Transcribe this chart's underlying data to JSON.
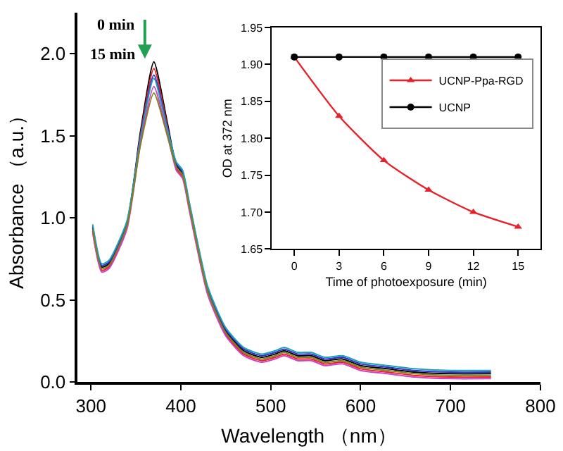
{
  "chart_data": [
    {
      "type": "line",
      "xlabel": "Wavelength （nm）",
      "ylabel": "Absorbance （a.u.）",
      "annotations": [
        "0 min",
        "15 min"
      ],
      "x": [
        302,
        312,
        320,
        340,
        355,
        370,
        385,
        395,
        402,
        410,
        430,
        450,
        470,
        490,
        505,
        515,
        530,
        545,
        560,
        580,
        600,
        630,
        660,
        700,
        745
      ],
      "xlim": [
        285,
        800
      ],
      "xticks": [
        300,
        400,
        500,
        600,
        700,
        800
      ],
      "ylim": [
        0,
        2.25
      ],
      "yticks": [
        {
          "value": 0,
          "label": "0.0"
        },
        0.5,
        {
          "value": 1,
          "label": "1.0"
        },
        1.5,
        {
          "value": 2,
          "label": "2.0"
        }
      ],
      "grid": false,
      "marker": "none",
      "line_style": "solid",
      "series": [
        {
          "color": "#000000",
          "values": [
            0.94,
            0.7,
            0.72,
            0.96,
            1.52,
            1.95,
            1.58,
            1.32,
            1.27,
            1.06,
            0.56,
            0.31,
            0.19,
            0.15,
            0.17,
            0.19,
            0.16,
            0.16,
            0.13,
            0.14,
            0.1,
            0.08,
            0.06,
            0.05,
            0.05
          ]
        },
        {
          "color": "#e8202a",
          "values": [
            0.92,
            0.68,
            0.7,
            0.94,
            1.5,
            1.91,
            1.56,
            1.3,
            1.25,
            1.04,
            0.54,
            0.29,
            0.17,
            0.13,
            0.15,
            0.17,
            0.14,
            0.14,
            0.11,
            0.12,
            0.08,
            0.06,
            0.04,
            0.03,
            0.03
          ]
        },
        {
          "color": "#3030d0",
          "values": [
            0.95,
            0.71,
            0.73,
            0.97,
            1.49,
            1.87,
            1.55,
            1.33,
            1.28,
            1.07,
            0.57,
            0.32,
            0.2,
            0.16,
            0.18,
            0.2,
            0.17,
            0.17,
            0.14,
            0.15,
            0.11,
            0.09,
            0.07,
            0.06,
            0.06
          ]
        },
        {
          "color": "#20a0b0",
          "values": [
            0.96,
            0.72,
            0.74,
            0.98,
            1.48,
            1.85,
            1.54,
            1.34,
            1.29,
            1.08,
            0.58,
            0.33,
            0.21,
            0.17,
            0.19,
            0.21,
            0.18,
            0.18,
            0.15,
            0.16,
            0.12,
            0.1,
            0.08,
            0.07,
            0.07
          ]
        },
        {
          "color": "#d040c0",
          "values": [
            0.91,
            0.67,
            0.69,
            0.93,
            1.45,
            1.8,
            1.51,
            1.29,
            1.24,
            1.03,
            0.53,
            0.28,
            0.16,
            0.12,
            0.14,
            0.16,
            0.13,
            0.13,
            0.1,
            0.11,
            0.07,
            0.05,
            0.03,
            0.02,
            0.02
          ]
        },
        {
          "color": "#808020",
          "values": [
            0.93,
            0.69,
            0.71,
            0.95,
            1.44,
            1.76,
            1.5,
            1.31,
            1.26,
            1.05,
            0.55,
            0.3,
            0.18,
            0.14,
            0.16,
            0.18,
            0.15,
            0.15,
            0.12,
            0.13,
            0.09,
            0.07,
            0.05,
            0.04,
            0.04
          ]
        }
      ]
    },
    {
      "type": "line",
      "xlabel": "Time of photoexposure (min)",
      "ylabel": "OD at 372 nm",
      "x": [
        0,
        3,
        6,
        9,
        12,
        15
      ],
      "xlim": [
        -1.5,
        16.5
      ],
      "xticks": [
        0,
        3,
        6,
        9,
        12,
        15
      ],
      "ylim": [
        1.65,
        1.95
      ],
      "yticks": [
        1.65,
        {
          "value": 1.7,
          "label": "1.70"
        },
        1.75,
        {
          "value": 1.8,
          "label": "1.80"
        },
        1.85,
        {
          "value": 1.9,
          "label": "1.90"
        },
        1.95
      ],
      "grid": false,
      "legend": "top right",
      "line_style": "solid",
      "series": [
        {
          "name": "UCNP-Ppa-RGD",
          "color": "#e8202a",
          "marker": "triangle",
          "values": [
            1.91,
            1.83,
            1.77,
            1.73,
            1.7,
            1.68
          ]
        },
        {
          "name": "UCNP",
          "color": "#000000",
          "marker": "circle",
          "values": [
            1.91,
            1.91,
            1.91,
            1.91,
            1.91,
            1.91
          ]
        }
      ]
    }
  ]
}
